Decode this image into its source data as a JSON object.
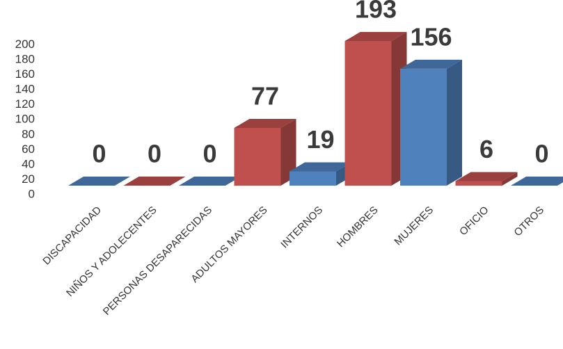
{
  "chart_data": {
    "type": "bar3d",
    "categories": [
      "DISCAPACIDAD",
      "NIÑOS Y ADOLECENTES",
      "PERSONAS DESAPARECIDAS",
      "ADULTOS MAYORES",
      "INTERNOS",
      "HOMBRES",
      "MUJERES",
      "OFICIO",
      "OTROS"
    ],
    "values": [
      0,
      0,
      0,
      77,
      19,
      193,
      156,
      6,
      0
    ],
    "colors": [
      "#4f81bd",
      "#c0504d",
      "#4f81bd",
      "#c0504d",
      "#4f81bd",
      "#c0504d",
      "#4f81bd",
      "#c0504d",
      "#4f81bd"
    ],
    "ylim": [
      0,
      200
    ],
    "yticks": [
      0,
      20,
      40,
      60,
      80,
      100,
      120,
      140,
      160,
      180,
      200
    ]
  }
}
